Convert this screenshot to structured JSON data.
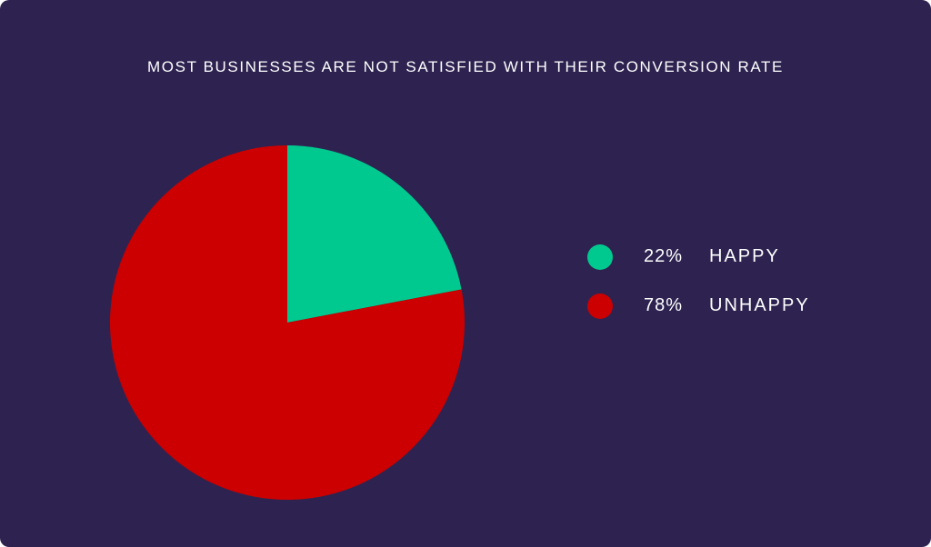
{
  "colors": {
    "background": "#2e2350",
    "text": "#ffffff"
  },
  "chart_data": {
    "type": "pie",
    "title": "MOST BUSINESSES ARE NOT SATISFIED WITH THEIR CONVERSION RATE",
    "legend": "right",
    "slices": [
      {
        "label": "HAPPY",
        "value": 22,
        "display": "22%",
        "color": "#00c98f"
      },
      {
        "label": "UNHAPPY",
        "value": 78,
        "display": "78%",
        "color": "#cc0000"
      }
    ]
  }
}
